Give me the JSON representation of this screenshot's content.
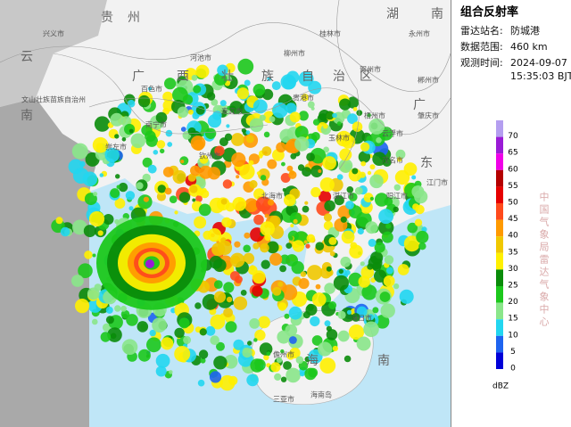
{
  "map": {
    "labels": [
      "贵",
      "州",
      "湖",
      "南",
      "云",
      "南",
      "广",
      "西",
      "壮",
      "族",
      "自",
      "治",
      "区",
      "广",
      "东",
      "海",
      "南",
      "兴义市",
      "百色市",
      "河池市",
      "柳州市",
      "桂林市",
      "贺州市",
      "来宾市",
      "南宁市",
      "贵港市",
      "梧州市",
      "玉林市",
      "崇左市",
      "钦州市",
      "北海市",
      "湛江市",
      "茂名市",
      "阳江市",
      "江门市",
      "肇庆市",
      "云浮市",
      "海口市",
      "儋州市",
      "海南岛",
      "三亚市",
      "文山壮族苗族自治州",
      "永州市",
      "郴州市"
    ]
  },
  "panel": {
    "title": "组合反射率",
    "station_label": "雷达站名:",
    "station": "防城港",
    "range_label": "数据范围:",
    "range": "460 km",
    "time_label": "观测时间:",
    "date": "2024-09-07",
    "time": "15:35:03 BJT",
    "unit": "dBZ",
    "credit": "中国气象局雷达气象中心"
  },
  "legend": {
    "levels": [
      {
        "value": 70,
        "color": "#b49ef0"
      },
      {
        "value": 65,
        "color": "#9a1bd6"
      },
      {
        "value": 60,
        "color": "#f000e8"
      },
      {
        "value": 55,
        "color": "#b40000"
      },
      {
        "value": 50,
        "color": "#e60000"
      },
      {
        "value": 45,
        "color": "#ff4a1c"
      },
      {
        "value": 40,
        "color": "#ff9a00"
      },
      {
        "value": 35,
        "color": "#f0c800"
      },
      {
        "value": 30,
        "color": "#fff000"
      },
      {
        "value": 25,
        "color": "#0a8c0a"
      },
      {
        "value": 20,
        "color": "#1cc81c"
      },
      {
        "value": 15,
        "color": "#8ae68a"
      },
      {
        "value": 10,
        "color": "#22d6f0"
      },
      {
        "value": 5,
        "color": "#1e64f0"
      },
      {
        "value": 0,
        "color": "#0000d8"
      }
    ]
  }
}
